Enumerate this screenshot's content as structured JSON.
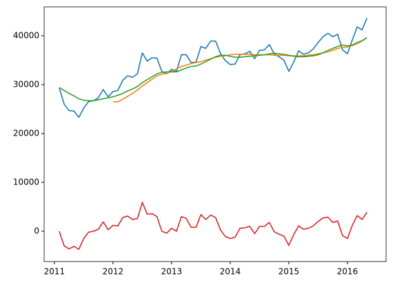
{
  "chart_data": {
    "type": "line",
    "x": [
      2011.083,
      2011.167,
      2011.25,
      2011.333,
      2011.417,
      2011.5,
      2011.583,
      2011.667,
      2011.75,
      2011.833,
      2011.917,
      2012,
      2012.083,
      2012.167,
      2012.25,
      2012.333,
      2012.417,
      2012.5,
      2012.583,
      2012.667,
      2012.75,
      2012.833,
      2012.917,
      2013,
      2013.083,
      2013.167,
      2013.25,
      2013.333,
      2013.417,
      2013.5,
      2013.583,
      2013.667,
      2013.75,
      2013.833,
      2013.917,
      2014,
      2014.083,
      2014.167,
      2014.25,
      2014.333,
      2014.417,
      2014.5,
      2014.583,
      2014.667,
      2014.75,
      2014.833,
      2014.917,
      2015,
      2015.083,
      2015.167,
      2015.25,
      2015.333,
      2015.417,
      2015.5,
      2015.583,
      2015.667,
      2015.75,
      2015.833,
      2015.917,
      2016,
      2016.083,
      2016.167,
      2016.25,
      2016.333
    ],
    "series": [
      {
        "color": "#1f77b4",
        "values": [
          29300,
          26000,
          24700,
          24600,
          23300,
          25200,
          26500,
          26700,
          27300,
          29000,
          27500,
          28600,
          28800,
          30900,
          31800,
          31500,
          32200,
          36500,
          34800,
          35500,
          35400,
          32700,
          32200,
          33100,
          32700,
          36100,
          36100,
          34500,
          34600,
          37800,
          37400,
          38900,
          38900,
          36400,
          34900,
          34100,
          34200,
          36100,
          36300,
          36800,
          35300,
          37000,
          37100,
          38200,
          36300,
          35700,
          35000,
          32700,
          34600,
          36900,
          36200,
          36500,
          37300,
          38600,
          39800,
          40500,
          39800,
          40300,
          37100,
          36300,
          39100,
          41800,
          41200,
          43600
        ]
      },
      {
        "color": "#ff7f0e",
        "values": [
          null,
          null,
          null,
          null,
          null,
          null,
          null,
          null,
          null,
          null,
          null,
          26500,
          26500,
          27000,
          27600,
          28200,
          28900,
          29700,
          30400,
          31100,
          31800,
          32100,
          32300,
          32700,
          33200,
          33700,
          34000,
          34300,
          34500,
          34700,
          35000,
          35300,
          35600,
          35800,
          35900,
          36100,
          36200,
          36200,
          36200,
          36200,
          36100,
          36100,
          36100,
          36100,
          36000,
          36000,
          36000,
          35900,
          35900,
          35900,
          35900,
          36000,
          36100,
          36300,
          36500,
          36700,
          37000,
          37400,
          37600,
          37700,
          38000,
          38400,
          38900,
          39600
        ]
      },
      {
        "color": "#2ca02c",
        "values": [
          29400,
          28800,
          28200,
          27700,
          27100,
          26800,
          26700,
          26700,
          26900,
          27100,
          27300,
          27500,
          27800,
          28200,
          28700,
          29100,
          29600,
          30400,
          31000,
          31600,
          32200,
          32500,
          32600,
          32600,
          32600,
          33000,
          33400,
          33700,
          33800,
          34200,
          34700,
          35200,
          35700,
          36000,
          36000,
          35800,
          35600,
          35600,
          35700,
          35800,
          35900,
          36000,
          36100,
          36300,
          36400,
          36300,
          36200,
          36000,
          35800,
          35700,
          35700,
          35800,
          35900,
          36100,
          36500,
          37000,
          37400,
          37800,
          38100,
          37900,
          38100,
          38600,
          39000,
          39600
        ]
      },
      {
        "color": "#d62728",
        "values": [
          0,
          -3000,
          -3600,
          -3100,
          -3700,
          -1500,
          -200,
          0,
          400,
          1900,
          300,
          1200,
          1100,
          2800,
          3100,
          2400,
          2600,
          5900,
          3500,
          3600,
          3000,
          0,
          -400,
          600,
          0,
          3000,
          2600,
          800,
          800,
          3400,
          2400,
          3300,
          2800,
          300,
          -1100,
          -1500,
          -1200,
          600,
          700,
          1000,
          -500,
          1000,
          1000,
          1800,
          -100,
          -600,
          -1000,
          -2900,
          -700,
          1100,
          400,
          600,
          1100,
          2000,
          2700,
          2900,
          1800,
          2100,
          -900,
          -1500,
          1200,
          3200,
          2400,
          3900
        ]
      }
    ],
    "xlim": [
      2010.825,
      2016.66
    ],
    "xticks": [
      2011,
      2012,
      2013,
      2014,
      2015,
      2016
    ],
    "ylim": [
      -6200,
      45900
    ],
    "yticks": [
      0,
      10000,
      20000,
      30000,
      40000
    ],
    "grid": false
  }
}
